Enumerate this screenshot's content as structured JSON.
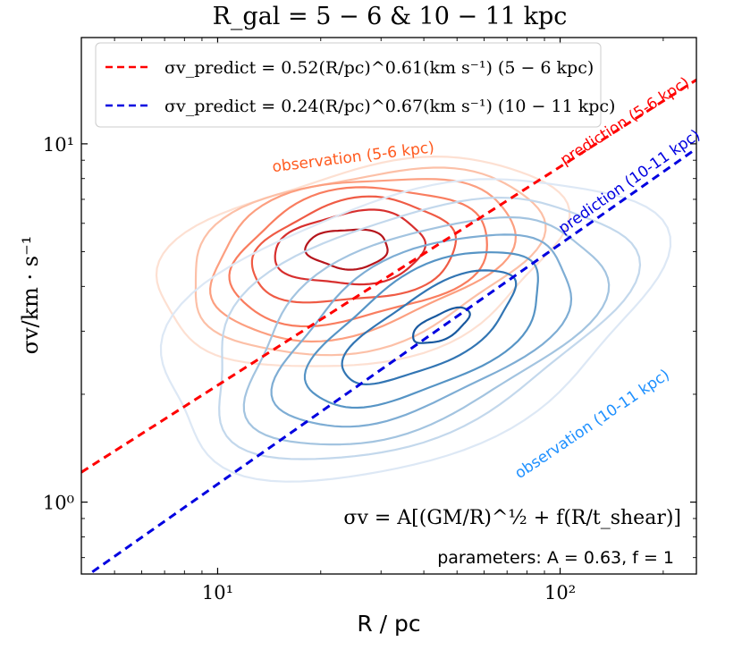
{
  "chart_data": {
    "type": "line",
    "title": "R_gal = 5 − 6 & 10 − 11 kpc",
    "xlabel": "R / pc",
    "ylabel": "σv/km · s⁻¹",
    "xscale": "log",
    "yscale": "log",
    "xlim": [
      4.0,
      250.0
    ],
    "ylim": [
      0.63,
      19.8
    ],
    "x_ticks": [
      {
        "value": 10,
        "label": "10¹"
      },
      {
        "value": 100,
        "label": "10²"
      }
    ],
    "y_ticks": [
      {
        "value": 1,
        "label": "10⁰"
      },
      {
        "value": 10,
        "label": "10¹"
      }
    ],
    "legend": {
      "position": "top-left",
      "entries": [
        {
          "label": "σv_predict = 0.52(R/pc)^0.61(km s⁻¹) (5 − 6 kpc)",
          "color": "#ff0000",
          "style": "dashed"
        },
        {
          "label": "σv_predict = 0.24(R/pc)^0.67(km s⁻¹) (10 − 11 kpc)",
          "color": "#0000e0",
          "style": "dashed"
        }
      ]
    },
    "series": [
      {
        "name": "prediction (5-6 kpc)",
        "a": 0.52,
        "b": 0.61,
        "color": "#ff0000",
        "style": "dashed"
      },
      {
        "name": "prediction (10-11 kpc)",
        "a": 0.24,
        "b": 0.67,
        "color": "#0000e0",
        "style": "dashed"
      }
    ],
    "contour_groups": [
      {
        "name": "observation (5-6 kpc)",
        "center_R": 24,
        "center_sigma": 5.1,
        "colors": [
          "#fde0d2",
          "#fcc0a7",
          "#fc9f80",
          "#f97d5f",
          "#ef5b45",
          "#d72f2e",
          "#b5151c"
        ],
        "levels": [
          {
            "rx": 0.6,
            "ry": 0.27,
            "dx": 0.04,
            "dy": -0.04,
            "rot": 12
          },
          {
            "rx": 0.52,
            "ry": 0.24,
            "dx": 0.04,
            "dy": -0.03,
            "rot": 12
          },
          {
            "rx": 0.45,
            "ry": 0.21,
            "dx": 0.03,
            "dy": -0.02,
            "rot": 12
          },
          {
            "rx": 0.38,
            "ry": 0.18,
            "dx": 0.03,
            "dy": -0.02,
            "rot": 10
          },
          {
            "rx": 0.3,
            "ry": 0.14,
            "dx": 0.02,
            "dy": -0.01,
            "rot": 8
          },
          {
            "rx": 0.22,
            "ry": 0.1,
            "dx": 0.01,
            "dy": 0.0,
            "rot": 5
          },
          {
            "rx": 0.12,
            "ry": 0.055,
            "dx": 0.0,
            "dy": 0.0,
            "rot": 0
          }
        ]
      },
      {
        "name": "observation (10-11 kpc)",
        "center_R": 45,
        "center_sigma": 3.1,
        "colors": [
          "#dde8f5",
          "#c3d8ec",
          "#a3c4e0",
          "#7eadd4",
          "#5694c5",
          "#3275b3",
          "#19599f"
        ],
        "levels": [
          {
            "rx": 0.75,
            "ry": 0.37,
            "dx": -0.1,
            "dy": 0.0,
            "rot": 18
          },
          {
            "rx": 0.64,
            "ry": 0.31,
            "dx": -0.08,
            "dy": 0.0,
            "rot": 20
          },
          {
            "rx": 0.55,
            "ry": 0.26,
            "dx": -0.06,
            "dy": -0.01,
            "rot": 22
          },
          {
            "rx": 0.46,
            "ry": 0.21,
            "dx": -0.05,
            "dy": -0.01,
            "rot": 24
          },
          {
            "rx": 0.37,
            "ry": 0.16,
            "dx": -0.04,
            "dy": -0.01,
            "rot": 26
          },
          {
            "rx": 0.28,
            "ry": 0.1,
            "dx": -0.03,
            "dy": -0.005,
            "rot": 28
          },
          {
            "rx": 0.09,
            "ry": 0.035,
            "dx": 0.0,
            "dy": 0.0,
            "rot": 25
          }
        ]
      }
    ],
    "annotations": [
      {
        "id": "obs56",
        "text": "observation (5-6 kpc)",
        "color": "#ff5a1f"
      },
      {
        "id": "pred56",
        "text": "prediction (5-6 kpc)",
        "color": "#ff0000"
      },
      {
        "id": "pred1011",
        "text": "prediction (10-11 kpc)",
        "color": "#0000e0"
      },
      {
        "id": "obs1011",
        "text": "observation (10-11 kpc)",
        "color": "#1e90ff"
      }
    ],
    "formula": "σv = A[(GM/R)^½ + f(R/t_shear)]",
    "parameters": "parameters: A = 0.63, f = 1"
  }
}
